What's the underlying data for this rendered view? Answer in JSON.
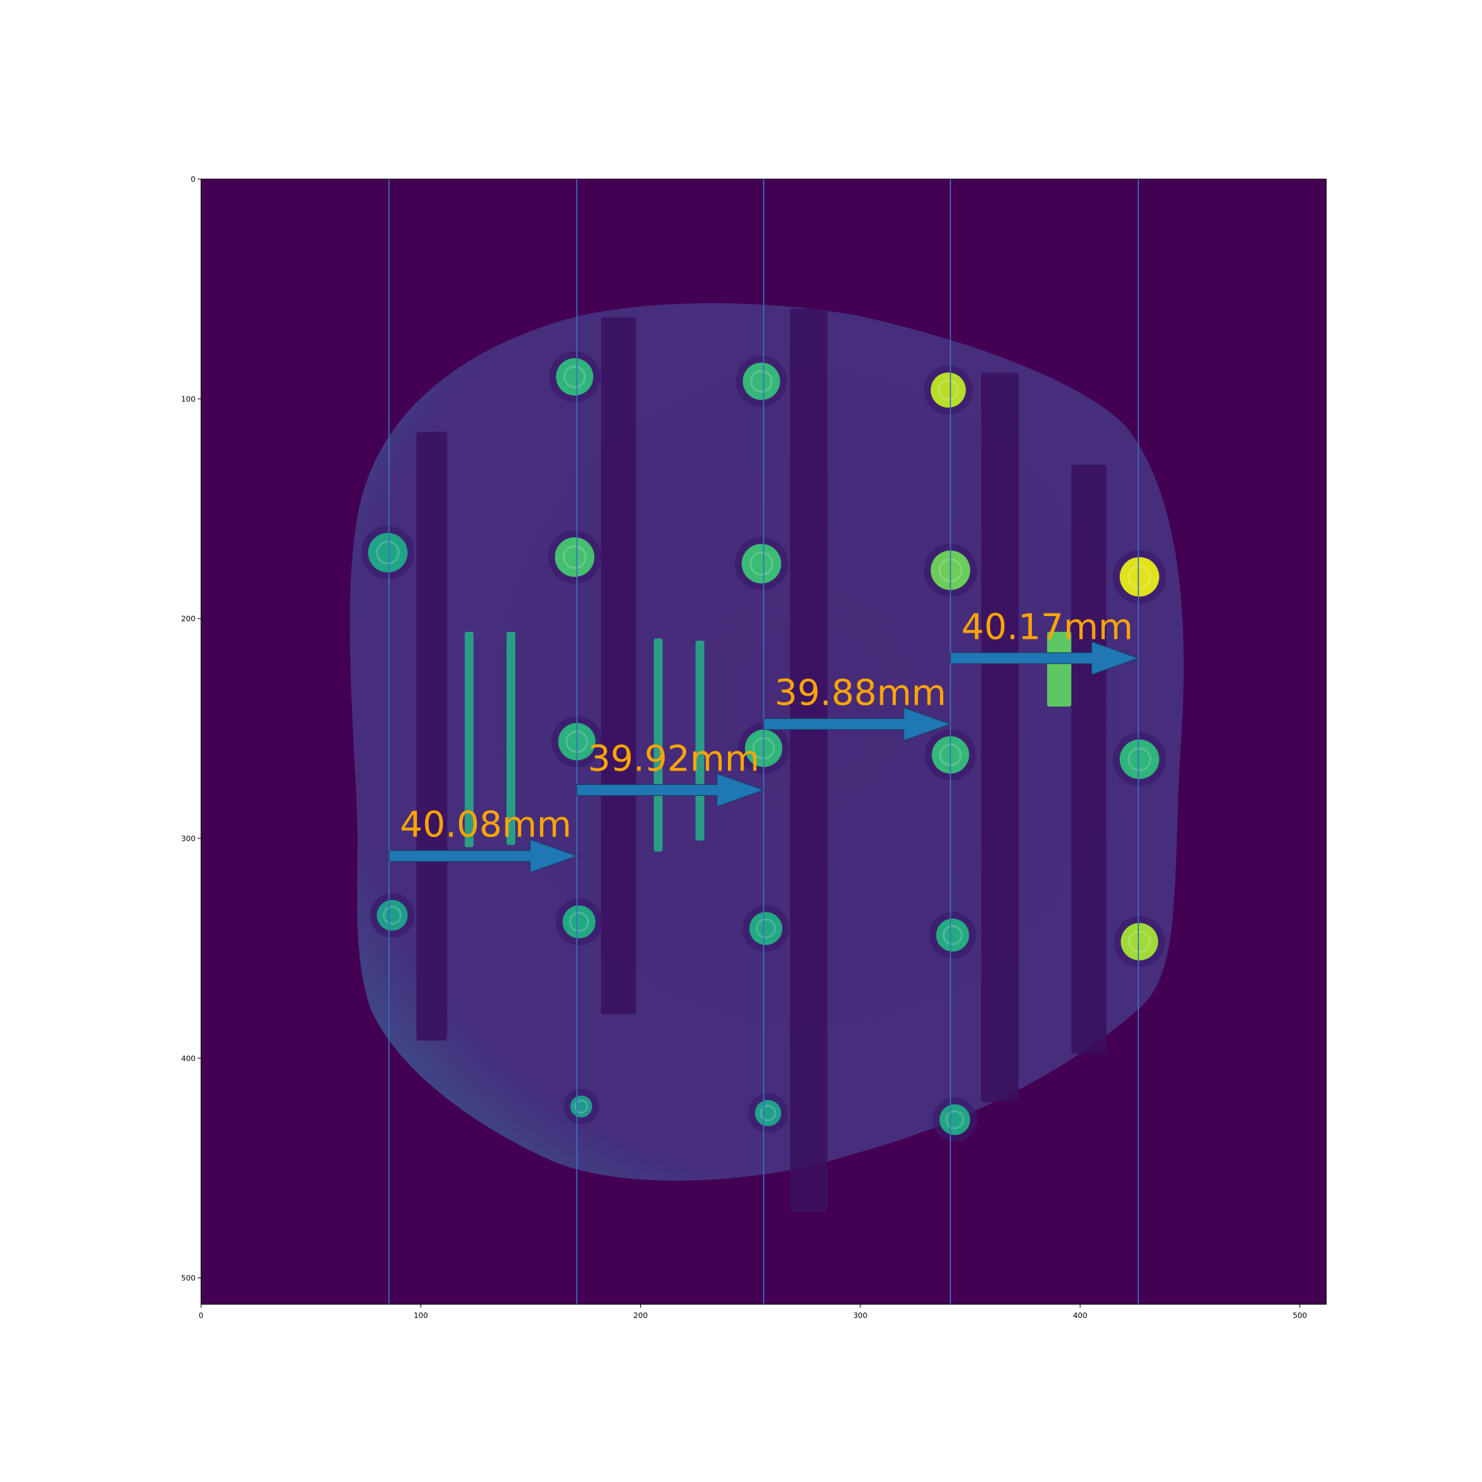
{
  "chart_data": {
    "type": "image",
    "colormap": "viridis",
    "xlim": [
      0,
      512
    ],
    "ylim": [
      512,
      0
    ],
    "x_ticks": [
      0,
      100,
      200,
      300,
      400,
      500
    ],
    "y_ticks": [
      0,
      100,
      200,
      300,
      400,
      500
    ],
    "x_tick_labels": [
      "0",
      "100",
      "200",
      "300",
      "400",
      "500"
    ],
    "y_tick_labels": [
      "0",
      "100",
      "200",
      "300",
      "400",
      "500"
    ],
    "vertical_lines_x": [
      85.5,
      171,
      256,
      341,
      426.5
    ],
    "line_color": "#3b70c0",
    "arrow_color": "#1f77b4",
    "label_color": "#ffa500",
    "measurements": [
      {
        "label": "40.08mm",
        "x_start": 85.5,
        "x_end": 171,
        "y": 308
      },
      {
        "label": "39.92mm",
        "x_start": 171,
        "x_end": 256,
        "y": 278
      },
      {
        "label": "39.88mm",
        "x_start": 256,
        "x_end": 341,
        "y": 248
      },
      {
        "label": "40.17mm",
        "x_start": 341,
        "x_end": 426.5,
        "y": 218
      }
    ],
    "markers": [
      {
        "x": 170,
        "y": 90,
        "r": 8.5,
        "color": "#2fb47c"
      },
      {
        "x": 255,
        "y": 92,
        "r": 8.5,
        "color": "#35b779"
      },
      {
        "x": 340,
        "y": 96,
        "r": 8,
        "color": "#b8de29"
      },
      {
        "x": 85,
        "y": 170,
        "r": 9,
        "color": "#20a486"
      },
      {
        "x": 170,
        "y": 172,
        "r": 9,
        "color": "#44bf70"
      },
      {
        "x": 255,
        "y": 175,
        "r": 9,
        "color": "#3bbb75"
      },
      {
        "x": 341,
        "y": 178,
        "r": 9,
        "color": "#6ccd5a"
      },
      {
        "x": 427,
        "y": 181,
        "r": 9,
        "color": "#e0e31c"
      },
      {
        "x": 171,
        "y": 256,
        "r": 8.5,
        "color": "#2bb07f"
      },
      {
        "x": 256,
        "y": 259,
        "r": 8.5,
        "color": "#2fb47c"
      },
      {
        "x": 341,
        "y": 262,
        "r": 8.5,
        "color": "#35b779"
      },
      {
        "x": 427,
        "y": 264,
        "r": 9,
        "color": "#2fb47c"
      },
      {
        "x": 87,
        "y": 335,
        "r": 7,
        "color": "#1f9e89"
      },
      {
        "x": 172,
        "y": 338,
        "r": 7.5,
        "color": "#22a884"
      },
      {
        "x": 257,
        "y": 341,
        "r": 7.5,
        "color": "#22a884"
      },
      {
        "x": 342,
        "y": 344,
        "r": 7.5,
        "color": "#25ab82"
      },
      {
        "x": 427,
        "y": 347,
        "r": 8.5,
        "color": "#a0da39"
      },
      {
        "x": 173,
        "y": 422,
        "r": 5,
        "color": "#1f9a8a"
      },
      {
        "x": 258,
        "y": 425,
        "r": 6,
        "color": "#1f9e89"
      },
      {
        "x": 343,
        "y": 428,
        "r": 7,
        "color": "#21a585"
      }
    ],
    "rods": [
      {
        "x0": 120,
        "y0": 206,
        "x1": 124,
        "y1": 304,
        "color": "#2a9d86"
      },
      {
        "x0": 139,
        "y0": 206,
        "x1": 143,
        "y1": 303,
        "color": "#2a9d86"
      },
      {
        "x0": 206,
        "y0": 209,
        "x1": 210,
        "y1": 306,
        "color": "#2a9d86"
      },
      {
        "x0": 225,
        "y0": 210,
        "x1": 229,
        "y1": 301,
        "color": "#2a9d86"
      },
      {
        "x0": 385,
        "y0": 206,
        "x1": 396,
        "y1": 240,
        "color": "#5cc863"
      }
    ],
    "dark_strips": [
      {
        "x0": 98,
        "y0": 115,
        "x1": 112,
        "y1": 392
      },
      {
        "x0": 182,
        "y0": 63,
        "x1": 198,
        "y1": 380
      },
      {
        "x0": 268,
        "y0": 59,
        "x1": 285,
        "y1": 470
      },
      {
        "x0": 355,
        "y0": 88,
        "x1": 372,
        "y1": 420
      },
      {
        "x0": 396,
        "y0": 130,
        "x1": 412,
        "y1": 398
      }
    ]
  }
}
